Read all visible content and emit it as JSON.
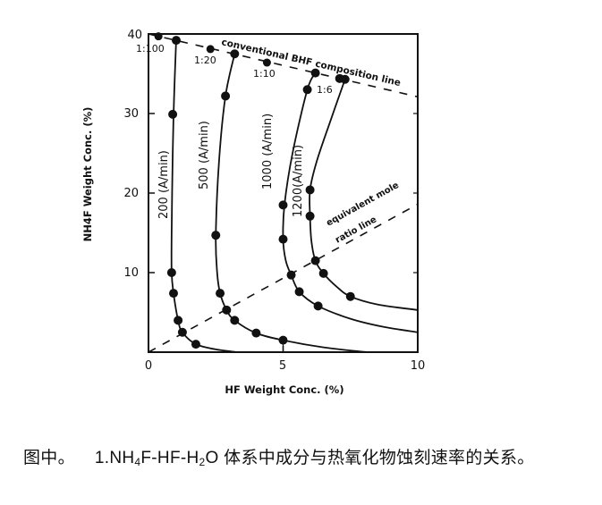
{
  "chart_data": {
    "type": "line",
    "title": "",
    "xlabel": "HF Weight Conc. (%)",
    "ylabel": "NH4F Weight Conc. (%)",
    "xlim": [
      0,
      10
    ],
    "ylim": [
      0,
      40
    ],
    "x_ticks": [
      0,
      5,
      10
    ],
    "y_ticks": [
      10,
      20,
      30,
      40
    ],
    "grid": false,
    "legend": "none (curves labeled inline)",
    "series": [
      {
        "name": "200 (A/min)",
        "label": "200 (A/min)",
        "points": [
          [
            1.03,
            39.2
          ],
          [
            0.9,
            29.9
          ],
          [
            0.86,
            10.0
          ],
          [
            0.93,
            7.4
          ],
          [
            1.1,
            4.0
          ],
          [
            1.26,
            2.5
          ],
          [
            1.76,
            1.0
          ]
        ],
        "curve": [
          [
            1.03,
            39.4
          ],
          [
            0.95,
            32
          ],
          [
            0.9,
            25
          ],
          [
            0.86,
            15
          ],
          [
            0.86,
            10
          ],
          [
            0.93,
            7.4
          ],
          [
            1.1,
            4.0
          ],
          [
            1.26,
            2.5
          ],
          [
            1.76,
            1.0
          ],
          [
            2.5,
            0.35
          ],
          [
            3.3,
            0
          ]
        ]
      },
      {
        "name": "500 (A/min)",
        "label": "500 (A/min)",
        "points": [
          [
            3.2,
            37.5
          ],
          [
            2.86,
            32.2
          ],
          [
            2.5,
            14.7
          ],
          [
            2.66,
            7.4
          ],
          [
            2.9,
            5.3
          ],
          [
            3.2,
            4.0
          ],
          [
            4.0,
            2.4
          ],
          [
            5.0,
            1.5
          ]
        ],
        "curve": [
          [
            3.2,
            37.5
          ],
          [
            2.86,
            32.2
          ],
          [
            2.62,
            24
          ],
          [
            2.5,
            14.7
          ],
          [
            2.55,
            10
          ],
          [
            2.66,
            7.4
          ],
          [
            2.9,
            5.3
          ],
          [
            3.2,
            4.0
          ],
          [
            4.0,
            2.4
          ],
          [
            5.0,
            1.5
          ],
          [
            6.5,
            0.6
          ],
          [
            8.1,
            0
          ]
        ]
      },
      {
        "name": "1000 (A/min)",
        "label": "1000 (A/min)",
        "points": [
          [
            6.2,
            35.1
          ],
          [
            5.9,
            33.0
          ],
          [
            5.0,
            18.5
          ],
          [
            5.0,
            14.2
          ],
          [
            5.3,
            9.7
          ],
          [
            5.6,
            7.6
          ],
          [
            6.3,
            5.8
          ]
        ],
        "curve": [
          [
            6.2,
            35.1
          ],
          [
            5.9,
            33.0
          ],
          [
            5.35,
            25
          ],
          [
            5.05,
            18.5
          ],
          [
            5.0,
            14.2
          ],
          [
            5.1,
            11.5
          ],
          [
            5.3,
            9.7
          ],
          [
            5.6,
            7.6
          ],
          [
            6.3,
            5.8
          ],
          [
            7.5,
            4.2
          ],
          [
            8.7,
            3.2
          ],
          [
            10.0,
            2.5
          ]
        ]
      },
      {
        "name": "1200 (A/min)",
        "label": "1200(A/min)",
        "points": [
          [
            7.1,
            34.4
          ],
          [
            7.3,
            34.3
          ],
          [
            6.0,
            20.4
          ],
          [
            6.0,
            17.1
          ],
          [
            6.2,
            11.5
          ],
          [
            6.5,
            9.9
          ],
          [
            7.5,
            7.0
          ]
        ],
        "curve": [
          [
            7.3,
            34.3
          ],
          [
            6.75,
            29
          ],
          [
            6.25,
            24
          ],
          [
            6.0,
            20.4
          ],
          [
            6.0,
            17.1
          ],
          [
            6.05,
            14
          ],
          [
            6.2,
            11.5
          ],
          [
            6.5,
            9.9
          ],
          [
            7.0,
            8.2
          ],
          [
            7.5,
            7.0
          ],
          [
            8.5,
            6.0
          ],
          [
            10.0,
            5.3
          ]
        ]
      }
    ],
    "reference_lines": [
      {
        "name": "conventional BHF composition line",
        "label": "conventional BHF composition line",
        "style": "dashed",
        "from": [
          0,
          40.0
        ],
        "to": [
          10,
          32.1
        ],
        "marked_points": [
          {
            "x": 0.37,
            "y": 39.7,
            "label": "1:100"
          },
          {
            "x": 2.3,
            "y": 38.1,
            "label": "1:20"
          },
          {
            "x": 4.4,
            "y": 36.4,
            "label": "1:10"
          },
          {
            "x": 6.2,
            "y": 35.1,
            "label": "1:6"
          }
        ]
      },
      {
        "name": "equivalent mole ratio line",
        "label_line1": "equivalent mole",
        "label_line2": "ratio line",
        "style": "dashed",
        "from": [
          0,
          0
        ],
        "to": [
          10,
          18.6
        ]
      }
    ]
  },
  "axes": {
    "xlabel": "HF Weight Conc. (%)",
    "ylabel": "NH4F Weight Conc. (%)",
    "x_tick_labels": [
      "0",
      "5",
      "10"
    ],
    "y_tick_labels": [
      "10",
      "20",
      "30",
      "40"
    ]
  },
  "annotations": {
    "bhf_line": "conventional BHF composition line",
    "ratio_1_100": "1:100",
    "ratio_1_20": "1:20",
    "ratio_1_10": "1:10",
    "ratio_1_6": "1:6",
    "mole_line_1": "equivalent mole",
    "mole_line_2": "ratio line",
    "curve_200": "200 (A/min)",
    "curve_500": "500 (A/min)",
    "curve_1000": "1000 (A/min)",
    "curve_1200": "1200(A/min)"
  },
  "caption": {
    "prefix": "图中。",
    "number": "1.NH",
    "sub1": "4",
    "mid": "F-HF-H",
    "sub2": "2",
    "suffix": "O 体系中成分与热氧化物蚀刻速率的关系。"
  }
}
